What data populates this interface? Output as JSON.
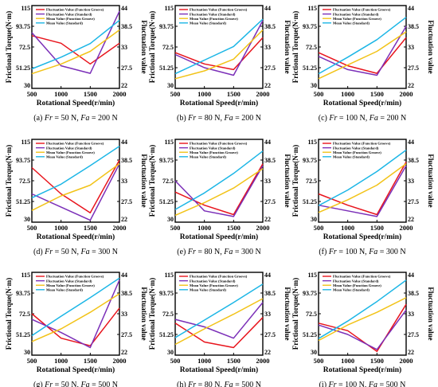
{
  "colors": {
    "fluct_groove": "#e8141c",
    "fluct_standard": "#7b2fb8",
    "mean_groove": "#f2c318",
    "mean_standard": "#1cb6e6"
  },
  "common": {
    "xlabel": "Rotational Speed(r/min)",
    "ylabel_left": "Frictional Torque(N·m)",
    "ylabel_right": "Fluctuation value",
    "x_ticks": [
      "500",
      "1000",
      "1500",
      "2000"
    ],
    "y_left_ticks": [
      "115",
      "93.75",
      "72.5",
      "51.25",
      "30"
    ],
    "y_right_ticks": [
      "44",
      "38.5",
      "33",
      "27.5",
      "22"
    ],
    "legend": [
      "Fluctuation Value (Function Groove)",
      "Fluctuation Value (Standard)",
      "Mean Value (Function Groove)",
      "Mean Value (Standard)"
    ]
  },
  "chart_data": [
    {
      "type": "line",
      "caption": {
        "letter": "(a) ",
        "fr": "Fr",
        "fr_val": " = 50 N, ",
        "fa": "Fa",
        "fa_val": " = 200 N"
      },
      "x": [
        500,
        1000,
        1500,
        2000
      ],
      "xlim": [
        500,
        2000
      ],
      "ylim": [
        30,
        115
      ],
      "y2lim": [
        22,
        44
      ],
      "series": [
        {
          "name": "Fluctuation Value (Function Groove)",
          "axis": "right",
          "values": [
            36.0,
            34.0,
            28.5,
            34.0
          ]
        },
        {
          "name": "Fluctuation Value (Standard)",
          "axis": "right",
          "values": [
            36.8,
            28.0,
            26.0,
            42.5
          ]
        },
        {
          "name": "Mean Value (Function Groove)",
          "axis": "left",
          "values": [
            45,
            55,
            68,
            90
          ]
        },
        {
          "name": "Mean Value (Standard)",
          "axis": "left",
          "values": [
            50,
            62,
            76,
            100
          ]
        }
      ]
    },
    {
      "type": "line",
      "caption": {
        "letter": "(b) ",
        "fr": "Fr",
        "fr_val": " = 80 N, ",
        "fa": "Fa",
        "fa_val": " = 200 N"
      },
      "x": [
        500,
        1000,
        1500,
        2000
      ],
      "xlim": [
        500,
        2000
      ],
      "ylim": [
        30,
        115
      ],
      "y2lim": [
        22,
        44
      ],
      "series": [
        {
          "name": "Fluctuation Value (Function Groove)",
          "axis": "right",
          "values": [
            31.5,
            28.5,
            27.0,
            35.5
          ]
        },
        {
          "name": "Fluctuation Value (Standard)",
          "axis": "right",
          "values": [
            31.0,
            27.5,
            25.5,
            40.0
          ]
        },
        {
          "name": "Mean Value (Function Groove)",
          "axis": "left",
          "values": [
            40,
            48,
            60,
            90
          ]
        },
        {
          "name": "Mean Value (Standard)",
          "axis": "left",
          "values": [
            45,
            59,
            73,
            101
          ]
        }
      ]
    },
    {
      "type": "line",
      "caption": {
        "letter": "(c) ",
        "fr": "Fr",
        "fr_val": " = 100 N, ",
        "fa": "Fa",
        "fa_val": " = 200 N"
      },
      "x": [
        500,
        1000,
        1500,
        2000
      ],
      "xlim": [
        500,
        2000
      ],
      "ylim": [
        30,
        115
      ],
      "y2lim": [
        22,
        44
      ],
      "series": [
        {
          "name": "Fluctuation Value (Function Groove)",
          "axis": "right",
          "values": [
            31.5,
            28.0,
            26.0,
            35.5
          ]
        },
        {
          "name": "Fluctuation Value (Standard)",
          "axis": "right",
          "values": [
            30.5,
            27.0,
            25.5,
            38.5
          ]
        },
        {
          "name": "Mean Value (Function Groove)",
          "axis": "left",
          "values": [
            40,
            54,
            68,
            88
          ]
        },
        {
          "name": "Mean Value (Standard)",
          "axis": "left",
          "values": [
            45,
            62,
            80,
            103
          ]
        }
      ]
    },
    {
      "type": "line",
      "caption": {
        "letter": "(d) ",
        "fr": "Fr",
        "fr_val": " = 50 N, ",
        "fa": "Fa",
        "fa_val": " = 300 N"
      },
      "x": [
        500,
        1000,
        1500,
        2000
      ],
      "xlim": [
        500,
        2000
      ],
      "ylim": [
        30,
        115
      ],
      "y2lim": [
        22,
        44
      ],
      "series": [
        {
          "name": "Fluctuation Value (Function Groove)",
          "axis": "right",
          "values": [
            36.5,
            29.5,
            24.5,
            38.5
          ]
        },
        {
          "name": "Fluctuation Value (Standard)",
          "axis": "right",
          "values": [
            29.5,
            26.0,
            22.5,
            37.5
          ]
        },
        {
          "name": "Mean Value (Function Groove)",
          "axis": "left",
          "values": [
            42,
            57,
            68,
            90
          ]
        },
        {
          "name": "Mean Value (Standard)",
          "axis": "left",
          "values": [
            55,
            69,
            88,
            108
          ]
        }
      ]
    },
    {
      "type": "line",
      "caption": {
        "letter": "(e) ",
        "fr": "Fr",
        "fr_val": " = 80 N, ",
        "fa": "Fa",
        "fa_val": " = 300 N"
      },
      "x": [
        500,
        1000,
        1500,
        2000
      ],
      "xlim": [
        500,
        2000
      ],
      "ylim": [
        30,
        115
      ],
      "y2lim": [
        22,
        44
      ],
      "series": [
        {
          "name": "Fluctuation Value (Function Groove)",
          "axis": "right",
          "values": [
            30.0,
            26.5,
            24.0,
            37.5
          ]
        },
        {
          "name": "Fluctuation Value (Standard)",
          "axis": "right",
          "values": [
            33.0,
            25.0,
            23.5,
            37.0
          ]
        },
        {
          "name": "Mean Value (Function Groove)",
          "axis": "left",
          "values": [
            37,
            50,
            65,
            85
          ]
        },
        {
          "name": "Mean Value (Standard)",
          "axis": "left",
          "values": [
            43,
            60,
            80,
            103
          ]
        }
      ]
    },
    {
      "type": "line",
      "caption": {
        "letter": "(f) ",
        "fr": "Fr",
        "fr_val": " = 100 N, ",
        "fa": "Fa",
        "fa_val": " = 300 N"
      },
      "x": [
        500,
        1000,
        1500,
        2000
      ],
      "xlim": [
        500,
        2000
      ],
      "ylim": [
        30,
        115
      ],
      "y2lim": [
        22,
        44
      ],
      "series": [
        {
          "name": "Fluctuation Value (Function Groove)",
          "axis": "right",
          "values": [
            29.5,
            26.5,
            24.0,
            38.0
          ]
        },
        {
          "name": "Fluctuation Value (Standard)",
          "axis": "right",
          "values": [
            26.5,
            25.0,
            23.5,
            37.0
          ]
        },
        {
          "name": "Mean Value (Function Groove)",
          "axis": "left",
          "values": [
            40,
            53,
            68,
            90
          ]
        },
        {
          "name": "Mean Value (Standard)",
          "axis": "left",
          "values": [
            47,
            63,
            82,
            104
          ]
        }
      ]
    },
    {
      "type": "line",
      "caption": {
        "letter": "(g) ",
        "fr": "Fr",
        "fr_val": " = 50 N, ",
        "fa": "Fa",
        "fa_val": " = 500 N"
      },
      "x": [
        500,
        1000,
        1500,
        2000
      ],
      "xlim": [
        500,
        2000
      ],
      "ylim": [
        30,
        115
      ],
      "y2lim": [
        22,
        44
      ],
      "series": [
        {
          "name": "Fluctuation Value (Function Groove)",
          "axis": "right",
          "values": [
            33.0,
            26.5,
            24.5,
            34.5
          ]
        },
        {
          "name": "Fluctuation Value (Standard)",
          "axis": "right",
          "values": [
            31.5,
            28.0,
            24.0,
            42.0
          ]
        },
        {
          "name": "Mean Value (Function Groove)",
          "axis": "left",
          "values": [
            44,
            57,
            74,
            93
          ]
        },
        {
          "name": "Mean Value (Standard)",
          "axis": "left",
          "values": [
            50,
            70,
            89,
            109
          ]
        }
      ]
    },
    {
      "type": "line",
      "caption": {
        "letter": "(h) ",
        "fr": "Fr",
        "fr_val": " = 80 N, ",
        "fa": "Fa",
        "fa_val": " = 500 N"
      },
      "x": [
        500,
        1000,
        1500,
        2000
      ],
      "xlim": [
        500,
        2000
      ],
      "ylim": [
        30,
        115
      ],
      "y2lim": [
        22,
        44
      ],
      "series": [
        {
          "name": "Fluctuation Value (Function Groove)",
          "axis": "right",
          "values": [
            30.5,
            25.5,
            24.0,
            32.0
          ]
        },
        {
          "name": "Fluctuation Value (Standard)",
          "axis": "right",
          "values": [
            31.5,
            29.5,
            26.5,
            36.0
          ]
        },
        {
          "name": "Mean Value (Function Groove)",
          "axis": "left",
          "values": [
            41,
            57,
            72,
            88
          ]
        },
        {
          "name": "Mean Value (Standard)",
          "axis": "left",
          "values": [
            48,
            66,
            84,
            103
          ]
        }
      ]
    },
    {
      "type": "line",
      "caption": {
        "letter": "(i) ",
        "fr": "Fr",
        "fr_val": " = 100 N, ",
        "fa": "Fa",
        "fa_val": " = 500 N"
      },
      "x": [
        500,
        1000,
        1500,
        2000
      ],
      "xlim": [
        500,
        2000
      ],
      "ylim": [
        30,
        115
      ],
      "y2lim": [
        22,
        44
      ],
      "series": [
        {
          "name": "Fluctuation Value (Function Groove)",
          "axis": "right",
          "values": [
            30.5,
            28.5,
            23.0,
            35.5
          ]
        },
        {
          "name": "Fluctuation Value (Standard)",
          "axis": "right",
          "values": [
            30.0,
            27.5,
            23.5,
            34.0
          ]
        },
        {
          "name": "Mean Value (Function Groove)",
          "axis": "left",
          "values": [
            45,
            61,
            74,
            89
          ]
        },
        {
          "name": "Mean Value (Standard)",
          "axis": "left",
          "values": [
            47,
            65,
            85,
            107
          ]
        }
      ]
    }
  ]
}
